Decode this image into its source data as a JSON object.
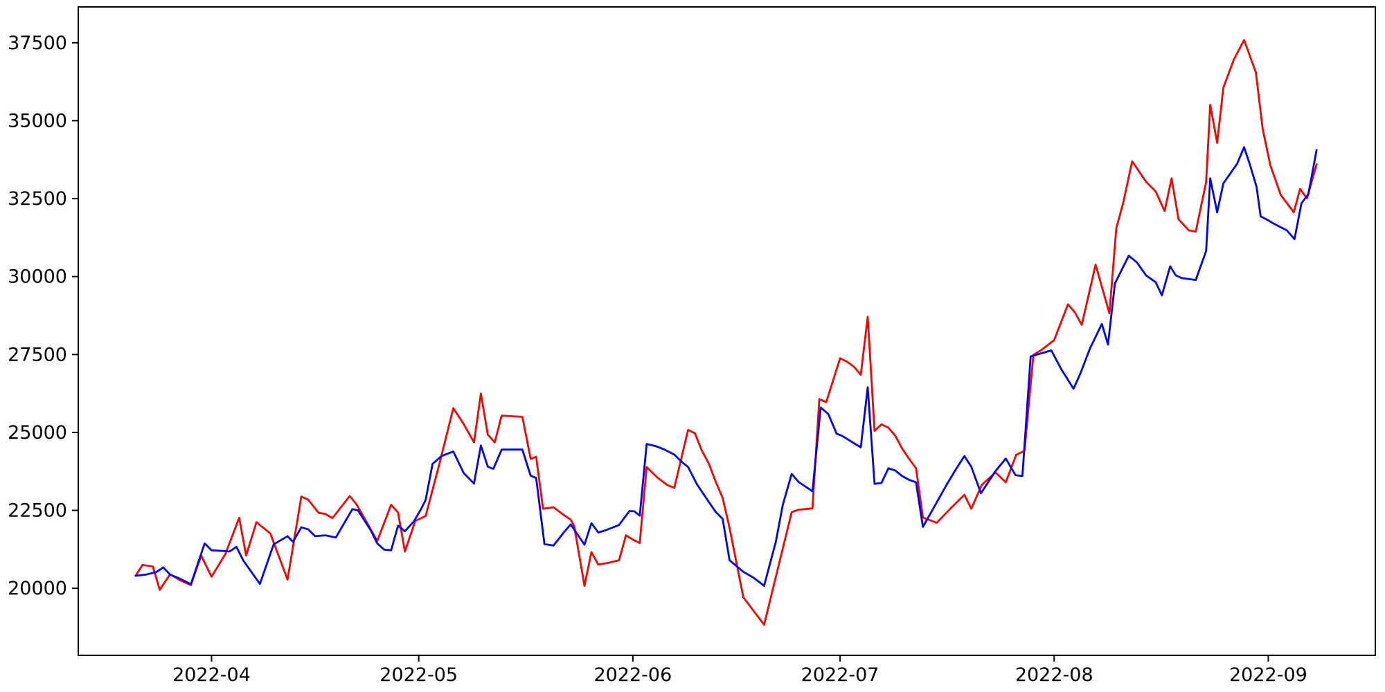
{
  "chart_data": {
    "type": "line",
    "title": "",
    "xlabel": "",
    "ylabel": "",
    "grid": false,
    "legend": null,
    "background": "#ffffff",
    "axis_color": "#000000",
    "x_unit": "days since 2022-03-21",
    "xlim": [
      -8.3,
      179.5
    ],
    "ylim": [
      17850,
      38650
    ],
    "x_ticks": [
      {
        "day": 11,
        "label": "2022-04"
      },
      {
        "day": 41,
        "label": "2022-05"
      },
      {
        "day": 72,
        "label": "2022-06"
      },
      {
        "day": 102,
        "label": "2022-07"
      },
      {
        "day": 133,
        "label": "2022-08"
      },
      {
        "day": 164,
        "label": "2022-09"
      }
    ],
    "y_ticks": [
      {
        "value": 20000,
        "label": "20000"
      },
      {
        "value": 22500,
        "label": "22500"
      },
      {
        "value": 25000,
        "label": "25000"
      },
      {
        "value": 27500,
        "label": "27500"
      },
      {
        "value": 30000,
        "label": "30000"
      },
      {
        "value": 32500,
        "label": "32500"
      },
      {
        "value": 35000,
        "label": "35000"
      },
      {
        "value": 37500,
        "label": "37500"
      }
    ],
    "series": [
      {
        "name": "series-red",
        "color": "#ff0000",
        "points": [
          [
            0,
            20400
          ],
          [
            1,
            20750
          ],
          [
            2.5,
            20700
          ],
          [
            3.5,
            19950
          ],
          [
            5,
            20450
          ],
          [
            6.5,
            20250
          ],
          [
            8,
            20100
          ],
          [
            9.5,
            21050
          ],
          [
            11,
            20370
          ],
          [
            13,
            21100
          ],
          [
            15,
            22260
          ],
          [
            16,
            21050
          ],
          [
            17.5,
            22120
          ],
          [
            19.5,
            21760
          ],
          [
            22,
            20280
          ],
          [
            24,
            22940
          ],
          [
            25,
            22840
          ],
          [
            26.5,
            22420
          ],
          [
            27.5,
            22380
          ],
          [
            28.5,
            22250
          ],
          [
            31,
            22960
          ],
          [
            32,
            22690
          ],
          [
            35,
            21520
          ],
          [
            37,
            22680
          ],
          [
            38,
            22430
          ],
          [
            39,
            21180
          ],
          [
            40.5,
            22160
          ],
          [
            42,
            22320
          ],
          [
            44,
            24000
          ],
          [
            46,
            25780
          ],
          [
            47.5,
            25270
          ],
          [
            49,
            24680
          ],
          [
            50,
            26250
          ],
          [
            51,
            24930
          ],
          [
            52,
            24680
          ],
          [
            53,
            25540
          ],
          [
            56,
            25500
          ],
          [
            57.2,
            24150
          ],
          [
            58,
            24220
          ],
          [
            59,
            22550
          ],
          [
            60.5,
            22600
          ],
          [
            62,
            22350
          ],
          [
            63,
            22200
          ],
          [
            63.5,
            22000
          ],
          [
            65,
            20080
          ],
          [
            66,
            21160
          ],
          [
            67,
            20760
          ],
          [
            68.5,
            20820
          ],
          [
            70,
            20900
          ],
          [
            71,
            21700
          ],
          [
            72,
            21560
          ],
          [
            73,
            21450
          ],
          [
            74,
            23890
          ],
          [
            75.5,
            23560
          ],
          [
            77,
            23310
          ],
          [
            78,
            23220
          ],
          [
            80,
            25080
          ],
          [
            81,
            24970
          ],
          [
            82,
            24410
          ],
          [
            83,
            24000
          ],
          [
            84,
            23420
          ],
          [
            85,
            22900
          ],
          [
            86,
            21940
          ],
          [
            88,
            19710
          ],
          [
            91,
            18830
          ],
          [
            92.5,
            20180
          ],
          [
            95,
            22440
          ],
          [
            96,
            22520
          ],
          [
            98,
            22560
          ],
          [
            99,
            26070
          ],
          [
            100,
            25970
          ],
          [
            102,
            27380
          ],
          [
            103,
            27270
          ],
          [
            104,
            27110
          ],
          [
            105,
            26850
          ],
          [
            106,
            28710
          ],
          [
            107,
            25050
          ],
          [
            108,
            25260
          ],
          [
            109,
            25150
          ],
          [
            110,
            24890
          ],
          [
            111,
            24480
          ],
          [
            112,
            24150
          ],
          [
            113,
            23850
          ],
          [
            114,
            22270
          ],
          [
            116,
            22100
          ],
          [
            118,
            22560
          ],
          [
            120,
            23000
          ],
          [
            121,
            22550
          ],
          [
            122.5,
            23310
          ],
          [
            124.5,
            23720
          ],
          [
            126,
            23400
          ],
          [
            127.5,
            24280
          ],
          [
            128.7,
            24410
          ],
          [
            130,
            27490
          ],
          [
            131,
            27620
          ],
          [
            133,
            27960
          ],
          [
            135,
            29110
          ],
          [
            136,
            28850
          ],
          [
            137,
            28450
          ],
          [
            139,
            30380
          ],
          [
            141,
            28820
          ],
          [
            142,
            31550
          ],
          [
            143,
            32370
          ],
          [
            144.3,
            33700
          ],
          [
            146.3,
            33040
          ],
          [
            147.7,
            32730
          ],
          [
            149,
            32100
          ],
          [
            150,
            33150
          ],
          [
            151,
            31840
          ],
          [
            152.5,
            31480
          ],
          [
            153.5,
            31440
          ],
          [
            155,
            33030
          ],
          [
            155.6,
            35510
          ],
          [
            156.6,
            34290
          ],
          [
            157.5,
            36060
          ],
          [
            159,
            36950
          ],
          [
            160.5,
            37590
          ],
          [
            161.3,
            37100
          ],
          [
            162.2,
            36550
          ],
          [
            163.2,
            34730
          ],
          [
            164.3,
            33570
          ],
          [
            165.8,
            32620
          ],
          [
            167.7,
            32060
          ],
          [
            168.6,
            32810
          ],
          [
            169.6,
            32510
          ],
          [
            171,
            33600
          ]
        ]
      },
      {
        "name": "series-blue",
        "color": "#0000ff",
        "points": [
          [
            0,
            20400
          ],
          [
            1.5,
            20440
          ],
          [
            3,
            20520
          ],
          [
            4,
            20670
          ],
          [
            5,
            20440
          ],
          [
            6.5,
            20300
          ],
          [
            8,
            20130
          ],
          [
            10,
            21440
          ],
          [
            11,
            21220
          ],
          [
            12.5,
            21200
          ],
          [
            13.6,
            21180
          ],
          [
            14.6,
            21330
          ],
          [
            15.6,
            20890
          ],
          [
            18,
            20140
          ],
          [
            20,
            21410
          ],
          [
            22,
            21670
          ],
          [
            22.8,
            21490
          ],
          [
            24,
            21960
          ],
          [
            25,
            21890
          ],
          [
            26,
            21670
          ],
          [
            27.5,
            21700
          ],
          [
            29,
            21630
          ],
          [
            31.4,
            22540
          ],
          [
            32.2,
            22500
          ],
          [
            34,
            21880
          ],
          [
            35,
            21440
          ],
          [
            36,
            21240
          ],
          [
            37,
            21220
          ],
          [
            38,
            22010
          ],
          [
            39,
            21830
          ],
          [
            40.3,
            22150
          ],
          [
            41.3,
            22530
          ],
          [
            42,
            22840
          ],
          [
            43,
            23990
          ],
          [
            44.3,
            24240
          ],
          [
            46,
            24390
          ],
          [
            47.5,
            23700
          ],
          [
            49,
            23360
          ],
          [
            50,
            24580
          ],
          [
            51,
            23900
          ],
          [
            51.8,
            23830
          ],
          [
            53,
            24450
          ],
          [
            56,
            24450
          ],
          [
            57.2,
            23610
          ],
          [
            58,
            23540
          ],
          [
            59.2,
            21420
          ],
          [
            60.5,
            21370
          ],
          [
            62,
            21790
          ],
          [
            63,
            22050
          ],
          [
            65,
            21400
          ],
          [
            66,
            22090
          ],
          [
            67,
            21790
          ],
          [
            68,
            21860
          ],
          [
            70,
            22030
          ],
          [
            71.5,
            22480
          ],
          [
            72.2,
            22470
          ],
          [
            73,
            22330
          ],
          [
            74,
            24630
          ],
          [
            75.3,
            24560
          ],
          [
            76.6,
            24450
          ],
          [
            78,
            24290
          ],
          [
            79,
            24070
          ],
          [
            80,
            23890
          ],
          [
            81.3,
            23330
          ],
          [
            82.6,
            22900
          ],
          [
            84,
            22450
          ],
          [
            85,
            22230
          ],
          [
            86,
            20900
          ],
          [
            88,
            20530
          ],
          [
            89.4,
            20350
          ],
          [
            91,
            20080
          ],
          [
            92.7,
            21490
          ],
          [
            93.7,
            22670
          ],
          [
            95,
            23670
          ],
          [
            96,
            23410
          ],
          [
            98,
            23110
          ],
          [
            99.2,
            25800
          ],
          [
            100.3,
            25590
          ],
          [
            101.5,
            24960
          ],
          [
            102.3,
            24890
          ],
          [
            105,
            24520
          ],
          [
            106,
            26450
          ],
          [
            107,
            23350
          ],
          [
            108,
            23380
          ],
          [
            109,
            23850
          ],
          [
            110,
            23780
          ],
          [
            111,
            23600
          ],
          [
            112,
            23480
          ],
          [
            113,
            23400
          ],
          [
            114,
            21970
          ],
          [
            115.8,
            22680
          ],
          [
            117.4,
            23310
          ],
          [
            118.7,
            23790
          ],
          [
            120,
            24240
          ],
          [
            121,
            23900
          ],
          [
            122.4,
            23050
          ],
          [
            124.5,
            23760
          ],
          [
            126,
            24160
          ],
          [
            127.4,
            23630
          ],
          [
            128.4,
            23600
          ],
          [
            129.6,
            27440
          ],
          [
            132.6,
            27630
          ],
          [
            134,
            27040
          ],
          [
            135.8,
            26400
          ],
          [
            136.8,
            26890
          ],
          [
            138.2,
            27700
          ],
          [
            139.9,
            28480
          ],
          [
            140.8,
            27820
          ],
          [
            141.8,
            29780
          ],
          [
            143.8,
            30670
          ],
          [
            145,
            30450
          ],
          [
            146.3,
            30040
          ],
          [
            147.7,
            29820
          ],
          [
            148.6,
            29400
          ],
          [
            149.8,
            30330
          ],
          [
            150.6,
            30040
          ],
          [
            151.5,
            29950
          ],
          [
            153.5,
            29890
          ],
          [
            155,
            30820
          ],
          [
            155.6,
            33150
          ],
          [
            156.6,
            32060
          ],
          [
            157.5,
            32990
          ],
          [
            159.5,
            33620
          ],
          [
            160.5,
            34150
          ],
          [
            161.3,
            33620
          ],
          [
            162.3,
            32880
          ],
          [
            162.9,
            31930
          ],
          [
            163.7,
            31840
          ],
          [
            164.7,
            31710
          ],
          [
            166.7,
            31480
          ],
          [
            167.8,
            31200
          ],
          [
            168.8,
            32350
          ],
          [
            169.8,
            32640
          ],
          [
            171,
            34060
          ]
        ]
      }
    ]
  }
}
